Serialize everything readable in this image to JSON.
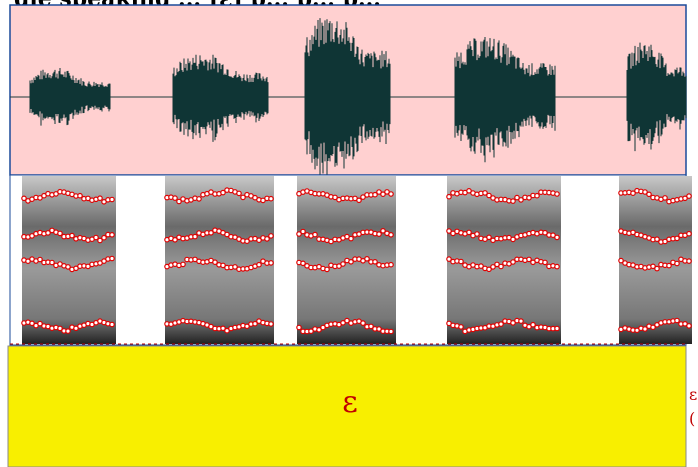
{
  "header": {
    "title": "gle speaking ... [ɛ] p... p... p..."
  },
  "tier": {
    "label": "ɛ",
    "edge_labels": [
      "ɛ",
      "("
    ]
  }
}
